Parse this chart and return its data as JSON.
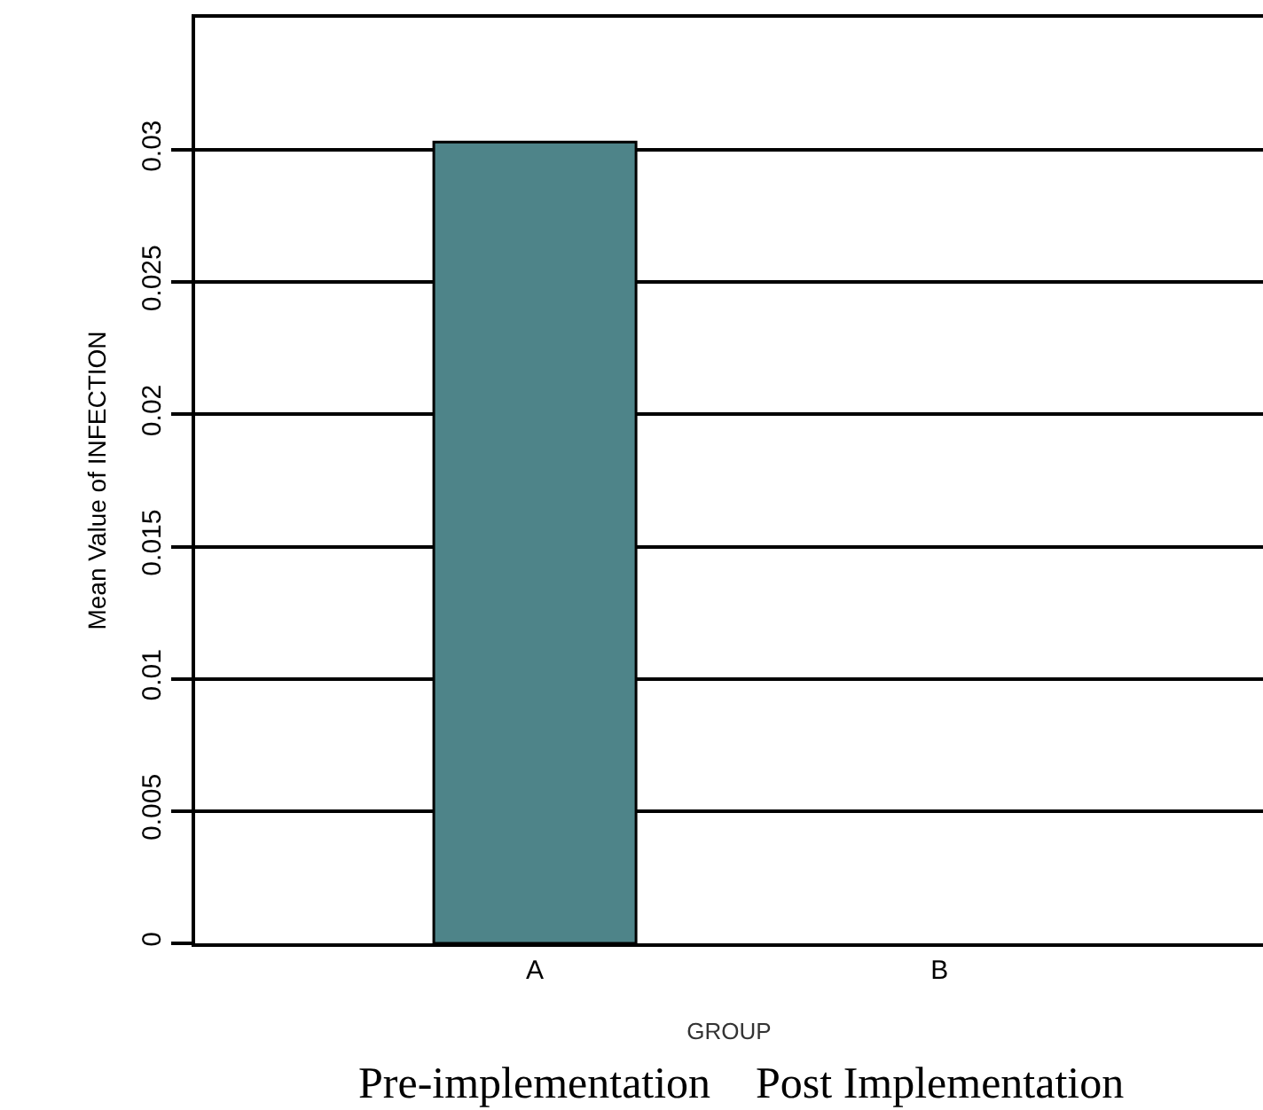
{
  "chart_data": {
    "type": "bar",
    "categories": [
      "A",
      "B"
    ],
    "values": [
      0.0303,
      0
    ],
    "color": "#4e8489",
    "xlabel": "GROUP",
    "ylabel": "Mean Value of INFECTION",
    "ylim": [
      0,
      0.035
    ],
    "yticks": [
      0,
      0.005,
      0.01,
      0.015,
      0.02,
      0.025,
      0.03
    ],
    "grid": "y",
    "annotations": [
      "Pre-implementation",
      "Post Implementation"
    ]
  }
}
